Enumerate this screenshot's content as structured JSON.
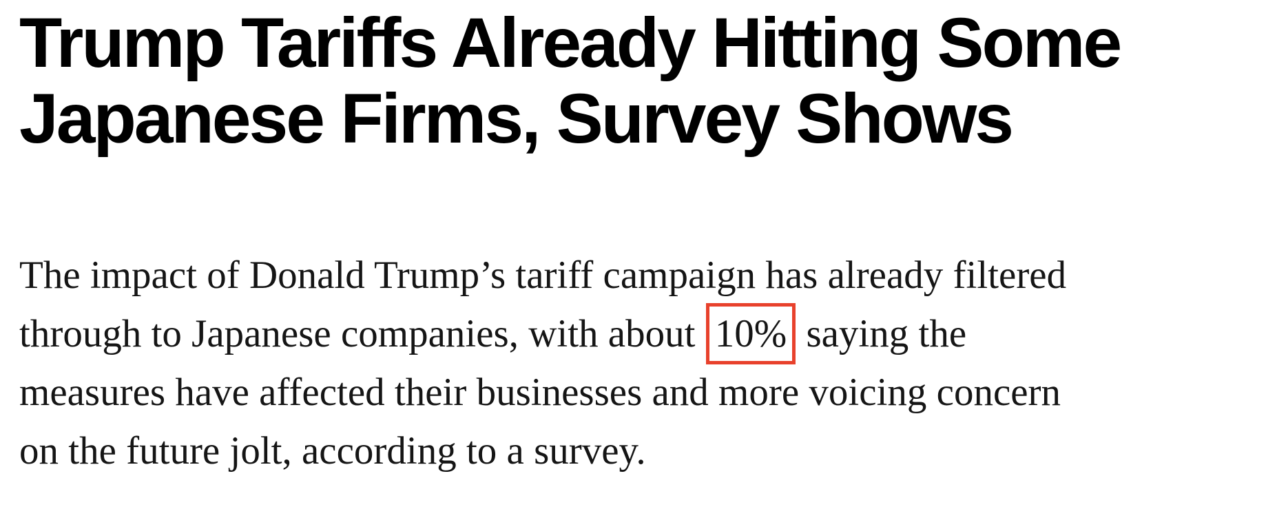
{
  "article": {
    "headline": {
      "lines": [
        "Trump Tariffs Already Hitting Some",
        "Japanese Firms, Survey Shows"
      ]
    },
    "body": {
      "lines": [
        {
          "text": "The impact of Donald Trump’s tariff campaign has already filtered"
        },
        {
          "pre": "through to Japanese companies, with about ",
          "highlight": "10%",
          "post": " saying the"
        },
        {
          "text": "measures have affected their businesses and more voicing concern"
        },
        {
          "text": "on the future jolt, according to a survey."
        }
      ]
    }
  },
  "colors": {
    "background": "#ffffff",
    "headline_text": "#000000",
    "body_text": "#151515",
    "highlight_box": "#e8412c"
  }
}
